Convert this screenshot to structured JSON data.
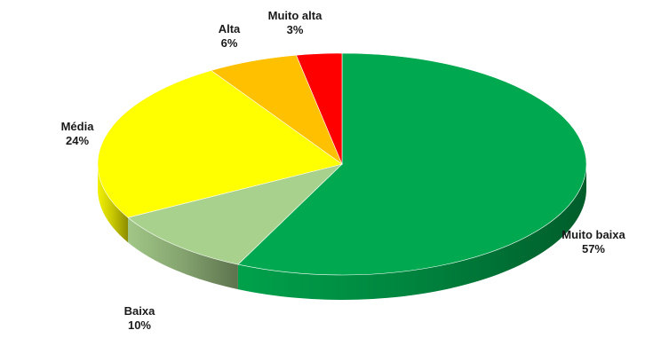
{
  "chart_data": {
    "type": "pie",
    "style": "3d",
    "slices": [
      {
        "label": "Muito baixa",
        "value": 57,
        "display": "57%",
        "color": "#00a94f"
      },
      {
        "label": "Baixa",
        "value": 10,
        "display": "10%",
        "color": "#a9d18e"
      },
      {
        "label": "Média",
        "value": 24,
        "display": "24%",
        "color": "#ffff00"
      },
      {
        "label": "Alta",
        "value": 6,
        "display": "6%",
        "color": "#ffc000"
      },
      {
        "label": "Muito alta",
        "value": 3,
        "display": "3%",
        "color": "#ff0000"
      }
    ],
    "legend": "none",
    "data_labels": "outside"
  }
}
